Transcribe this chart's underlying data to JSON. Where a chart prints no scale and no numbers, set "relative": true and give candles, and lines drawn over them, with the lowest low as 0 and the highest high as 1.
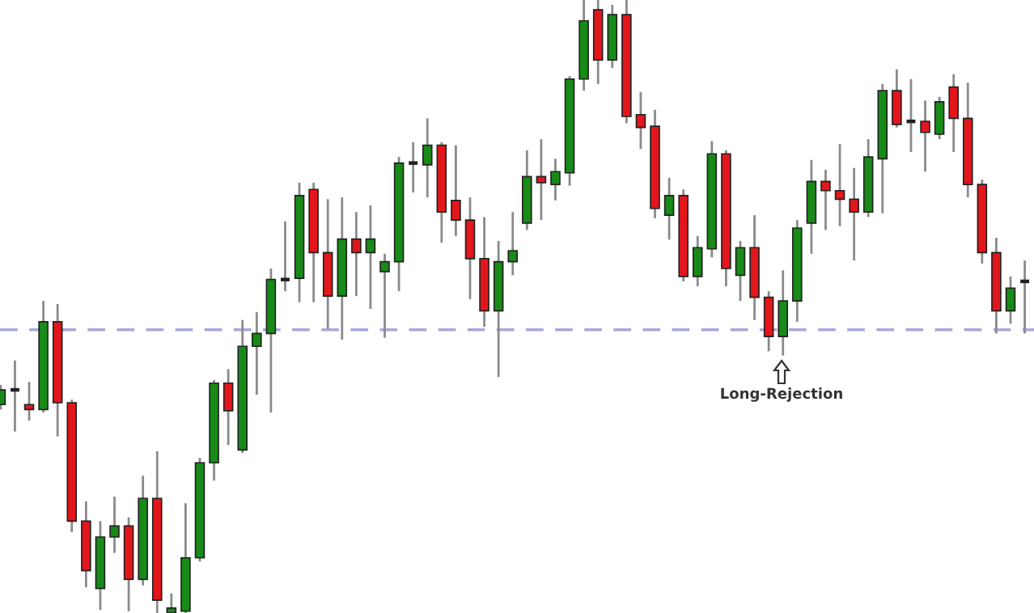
{
  "chart_data": {
    "type": "candlestick",
    "relative": true,
    "categories": [
      null,
      null,
      null,
      null,
      null,
      null,
      null,
      null,
      null,
      null,
      null,
      null,
      null,
      null,
      null,
      null,
      null,
      null,
      null,
      null,
      null,
      null,
      null,
      null,
      null,
      null,
      null,
      null,
      null,
      null,
      null,
      null,
      null,
      null,
      null,
      null,
      null,
      null,
      null,
      null,
      null,
      null,
      null,
      null,
      null,
      null,
      null,
      null,
      null,
      null,
      null,
      null,
      null,
      null,
      null,
      null,
      null,
      null,
      null,
      null,
      null,
      null,
      null,
      null,
      null,
      null,
      null,
      null,
      null,
      null,
      null,
      null,
      null
    ],
    "ohlc": [
      [
        0.34,
        0.372,
        0.332,
        0.364
      ],
      [
        0.364,
        0.412,
        0.296,
        0.364
      ],
      [
        0.34,
        0.377,
        0.314,
        0.332
      ],
      [
        0.332,
        0.509,
        0.327,
        0.475
      ],
      [
        0.475,
        0.504,
        0.288,
        0.343
      ],
      [
        0.343,
        0.348,
        0.132,
        0.15
      ],
      [
        0.15,
        0.182,
        0.042,
        0.069
      ],
      [
        0.04,
        0.15,
        0.005,
        0.124
      ],
      [
        0.124,
        0.19,
        0.098,
        0.142
      ],
      [
        0.142,
        0.156,
        0.003,
        0.055
      ],
      [
        0.055,
        0.224,
        0.045,
        0.187
      ],
      [
        0.187,
        0.264,
        0,
        0.021
      ],
      [
        0,
        0.032,
        0,
        0.008
      ],
      [
        0.003,
        0.179,
        0,
        0.09
      ],
      [
        0.09,
        0.253,
        0.084,
        0.245
      ],
      [
        0.245,
        0.38,
        0.216,
        0.375
      ],
      [
        0.375,
        0.398,
        0.274,
        0.33
      ],
      [
        0.266,
        0.478,
        0.261,
        0.435
      ],
      [
        0.435,
        0.491,
        0.356,
        0.456
      ],
      [
        0.456,
        0.562,
        0.327,
        0.544
      ],
      [
        0.544,
        0.639,
        0.525,
        0.544
      ],
      [
        0.546,
        0.702,
        0.507,
        0.681
      ],
      [
        0.691,
        0.702,
        0.507,
        0.588
      ],
      [
        0.588,
        0.675,
        0.464,
        0.517
      ],
      [
        0.517,
        0.678,
        0.446,
        0.61
      ],
      [
        0.61,
        0.654,
        0.517,
        0.588
      ],
      [
        0.588,
        0.665,
        0.496,
        0.61
      ],
      [
        0.557,
        0.586,
        0.449,
        0.573
      ],
      [
        0.573,
        0.744,
        0.525,
        0.734
      ],
      [
        0.734,
        0.768,
        0.686,
        0.734
      ],
      [
        0.731,
        0.807,
        0.678,
        0.763
      ],
      [
        0.763,
        0.768,
        0.604,
        0.654
      ],
      [
        0.673,
        0.763,
        0.615,
        0.641
      ],
      [
        0.641,
        0.678,
        0.512,
        0.578
      ],
      [
        0.578,
        0.646,
        0.467,
        0.493
      ],
      [
        0.493,
        0.607,
        0.385,
        0.573
      ],
      [
        0.573,
        0.654,
        0.551,
        0.591
      ],
      [
        0.636,
        0.755,
        0.625,
        0.712
      ],
      [
        0.712,
        0.773,
        0.641,
        0.702
      ],
      [
        0.699,
        0.741,
        0.673,
        0.72
      ],
      [
        0.718,
        0.876,
        0.697,
        0.871
      ],
      [
        0.871,
        1,
        0.852,
        0.966
      ],
      [
        0.984,
        1,
        0.863,
        0.902
      ],
      [
        0.902,
        0.992,
        0.889,
        0.976
      ],
      [
        0.976,
        1,
        0.799,
        0.81
      ],
      [
        0.813,
        0.85,
        0.757,
        0.792
      ],
      [
        0.794,
        0.821,
        0.644,
        0.66
      ],
      [
        0.649,
        0.71,
        0.609,
        0.681
      ],
      [
        0.681,
        0.691,
        0.541,
        0.549
      ],
      [
        0.549,
        0.615,
        0.533,
        0.596
      ],
      [
        0.594,
        0.77,
        0.58,
        0.749
      ],
      [
        0.749,
        0.755,
        0.533,
        0.562
      ],
      [
        0.551,
        0.607,
        0.509,
        0.596
      ],
      [
        0.596,
        0.649,
        0.478,
        0.515
      ],
      [
        0.515,
        0.525,
        0.427,
        0.451
      ],
      [
        0.451,
        0.559,
        0.42,
        0.509
      ],
      [
        0.509,
        0.641,
        0.475,
        0.628
      ],
      [
        0.636,
        0.739,
        0.586,
        0.704
      ],
      [
        0.704,
        0.723,
        0.625,
        0.689
      ],
      [
        0.689,
        0.765,
        0.631,
        0.675
      ],
      [
        0.675,
        0.726,
        0.575,
        0.654
      ],
      [
        0.654,
        0.773,
        0.646,
        0.744
      ],
      [
        0.741,
        0.863,
        0.652,
        0.852
      ],
      [
        0.852,
        0.887,
        0.792,
        0.797
      ],
      [
        0.802,
        0.871,
        0.752,
        0.802
      ],
      [
        0.802,
        0.836,
        0.72,
        0.784
      ],
      [
        0.781,
        0.842,
        0.773,
        0.834
      ],
      [
        0.858,
        0.879,
        0.752,
        0.807
      ],
      [
        0.807,
        0.865,
        0.678,
        0.699
      ],
      [
        0.699,
        0.707,
        0.57,
        0.588
      ],
      [
        0.588,
        0.612,
        0.456,
        0.493
      ],
      [
        0.493,
        0.549,
        0.472,
        0.53
      ],
      [
        0.541,
        0.575,
        0.456,
        0.541
      ]
    ],
    "colors": [
      "#178a17",
      "#202020",
      "#e3161c",
      "#178a17",
      "#e3161c",
      "#e3161c",
      "#e3161c",
      "#178a17",
      "#178a17",
      "#e3161c",
      "#178a17",
      "#e3161c",
      "#178a17",
      "#178a17",
      "#178a17",
      "#178a17",
      "#e3161c",
      "#178a17",
      "#178a17",
      "#178a17",
      "#202020",
      "#178a17",
      "#e3161c",
      "#e3161c",
      "#178a17",
      "#e3161c",
      "#178a17",
      "#178a17",
      "#178a17",
      "#202020",
      "#178a17",
      "#e3161c",
      "#e3161c",
      "#e3161c",
      "#e3161c",
      "#178a17",
      "#178a17",
      "#178a17",
      "#e3161c",
      "#178a17",
      "#178a17",
      "#178a17",
      "#e3161c",
      "#178a17",
      "#e3161c",
      "#e3161c",
      "#e3161c",
      "#178a17",
      "#e3161c",
      "#178a17",
      "#178a17",
      "#e3161c",
      "#178a17",
      "#e3161c",
      "#e3161c",
      "#178a17",
      "#178a17",
      "#178a17",
      "#e3161c",
      "#e3161c",
      "#e3161c",
      "#178a17",
      "#178a17",
      "#e3161c",
      "#202020",
      "#e3161c",
      "#178a17",
      "#e3161c",
      "#e3161c",
      "#e3161c",
      "#e3161c",
      "#178a17",
      "#202020"
    ],
    "ref_lines": [
      {
        "axis": "y",
        "value": 0.462,
        "color": "#a8a8dc",
        "line_style": "dashed"
      }
    ],
    "annotations": [
      "Long-Rejection"
    ]
  }
}
